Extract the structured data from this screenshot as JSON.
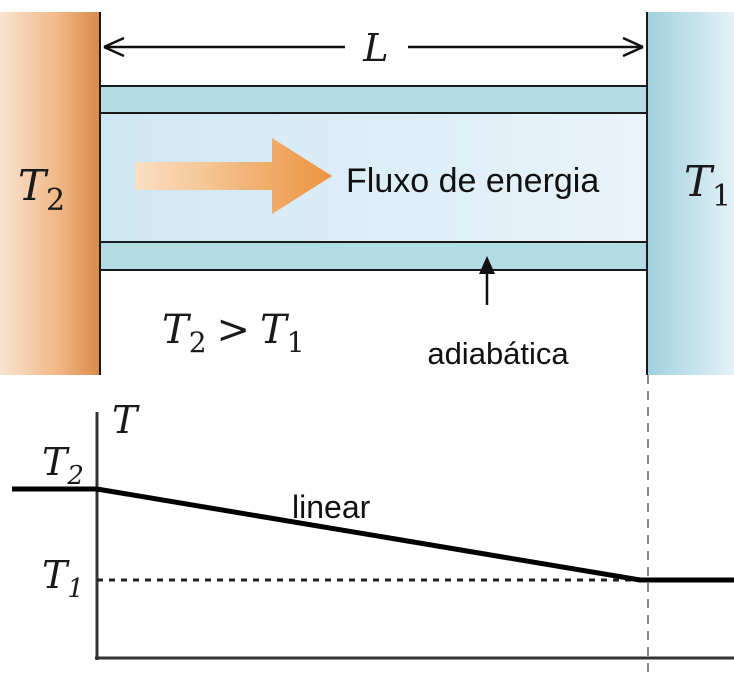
{
  "labels": {
    "length": "L",
    "hot_temp": {
      "symbol": "T",
      "sub": "2"
    },
    "cold_temp": {
      "symbol": "T",
      "sub": "1"
    },
    "flow": "Fluxo de energia",
    "condition": {
      "left": "T",
      "left_sub": "2",
      "op": ">",
      "right": "T",
      "right_sub": "1"
    },
    "insulation": "adiabática"
  },
  "graph": {
    "y_axis_label": "T",
    "t2_label": {
      "symbol": "T",
      "sub": "2"
    },
    "t1_label": {
      "symbol": "T",
      "sub": "1"
    },
    "line_label": "linear"
  },
  "colors": {
    "hot_reservoir": "#e69a5a",
    "cold_reservoir": "#a9d6e2",
    "rod_outer": "#b3dbe4",
    "rod_inner": "#d7ebf6",
    "arrow": "#f0a050"
  }
}
